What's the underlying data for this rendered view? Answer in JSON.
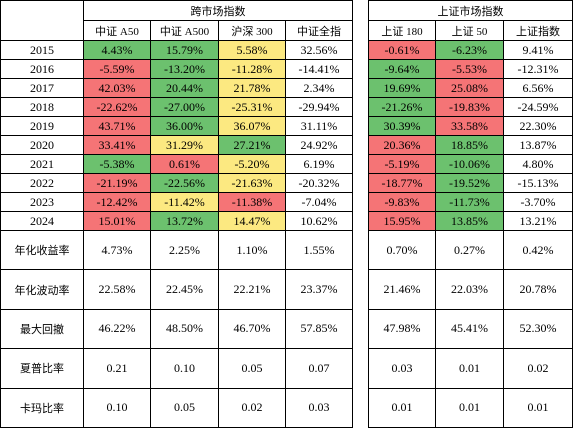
{
  "table": {
    "groups": [
      "跨市场指数",
      "上证市场指数"
    ],
    "columns": [
      "中证 A50",
      "中证 A500",
      "沪深 300",
      "中证全指",
      "上证 180",
      "上证 50",
      "上证指数"
    ],
    "rows": [
      {
        "label": "2015",
        "cells": [
          "4.43%",
          "15.79%",
          "5.58%",
          "32.56%",
          "-0.61%",
          "-6.23%",
          "9.41%"
        ],
        "colors": [
          "#6cc16e",
          "#6cc16e",
          "#fce981",
          null,
          "#f57476",
          "#6cc16e",
          null
        ]
      },
      {
        "label": "2016",
        "cells": [
          "-5.59%",
          "-13.20%",
          "-11.28%",
          "-14.41%",
          "-9.64%",
          "-5.53%",
          "-12.31%"
        ],
        "colors": [
          "#f57476",
          "#6cc16e",
          "#fce981",
          null,
          "#6cc16e",
          "#f57476",
          null
        ]
      },
      {
        "label": "2017",
        "cells": [
          "42.03%",
          "20.44%",
          "21.78%",
          "2.34%",
          "19.69%",
          "25.08%",
          "6.56%"
        ],
        "colors": [
          "#f57476",
          "#6cc16e",
          "#fce981",
          null,
          "#6cc16e",
          "#f57476",
          null
        ]
      },
      {
        "label": "2018",
        "cells": [
          "-22.62%",
          "-27.00%",
          "-25.31%",
          "-29.94%",
          "-21.26%",
          "-19.83%",
          "-24.59%"
        ],
        "colors": [
          "#f57476",
          "#6cc16e",
          "#fce981",
          null,
          "#6cc16e",
          "#f57476",
          null
        ]
      },
      {
        "label": "2019",
        "cells": [
          "43.71%",
          "36.00%",
          "36.07%",
          "31.11%",
          "30.39%",
          "33.58%",
          "22.30%"
        ],
        "colors": [
          "#f57476",
          "#6cc16e",
          "#fce981",
          null,
          "#6cc16e",
          "#f57476",
          null
        ]
      },
      {
        "label": "2020",
        "cells": [
          "33.41%",
          "31.29%",
          "27.21%",
          "24.92%",
          "20.36%",
          "18.85%",
          "13.87%"
        ],
        "colors": [
          "#f57476",
          "#fce981",
          "#6cc16e",
          null,
          "#f57476",
          "#6cc16e",
          null
        ]
      },
      {
        "label": "2021",
        "cells": [
          "-5.38%",
          "0.61%",
          "-5.20%",
          "6.19%",
          "-5.19%",
          "-10.06%",
          "4.80%"
        ],
        "colors": [
          "#6cc16e",
          "#f57476",
          "#fce981",
          null,
          "#f57476",
          "#6cc16e",
          null
        ]
      },
      {
        "label": "2022",
        "cells": [
          "-21.19%",
          "-22.56%",
          "-21.63%",
          "-20.32%",
          "-18.77%",
          "-19.52%",
          "-15.13%"
        ],
        "colors": [
          "#f57476",
          "#6cc16e",
          "#fce981",
          null,
          "#f57476",
          "#6cc16e",
          null
        ]
      },
      {
        "label": "2023",
        "cells": [
          "-12.42%",
          "-11.42%",
          "-11.38%",
          "-7.04%",
          "-9.83%",
          "-11.73%",
          "-3.70%"
        ],
        "colors": [
          "#f57476",
          "#fce981",
          "#f57476",
          null,
          "#f57476",
          "#6cc16e",
          null
        ]
      },
      {
        "label": "2024",
        "cells": [
          "15.01%",
          "13.72%",
          "14.47%",
          "10.62%",
          "15.95%",
          "13.85%",
          "13.21%"
        ],
        "colors": [
          "#f57476",
          "#6cc16e",
          "#fce981",
          null,
          "#f57476",
          "#6cc16e",
          null
        ]
      },
      {
        "label": "年化收益率",
        "cells": [
          "4.73%",
          "2.25%",
          "1.10%",
          "1.55%",
          "0.70%",
          "0.27%",
          "0.42%"
        ]
      },
      {
        "label": "年化波动率",
        "cells": [
          "22.58%",
          "22.45%",
          "22.21%",
          "23.37%",
          "21.46%",
          "22.03%",
          "20.78%"
        ]
      },
      {
        "label": "最大回撤",
        "cells": [
          "46.22%",
          "48.50%",
          "46.70%",
          "57.85%",
          "47.98%",
          "45.41%",
          "52.30%"
        ]
      },
      {
        "label": "夏普比率",
        "cells": [
          "0.21",
          "0.10",
          "0.05",
          "0.07",
          "0.03",
          "0.01",
          "0.02"
        ]
      },
      {
        "label": "卡玛比率",
        "cells": [
          "0.10",
          "0.05",
          "0.02",
          "0.03",
          "0.01",
          "0.01",
          "0.01"
        ]
      }
    ]
  }
}
